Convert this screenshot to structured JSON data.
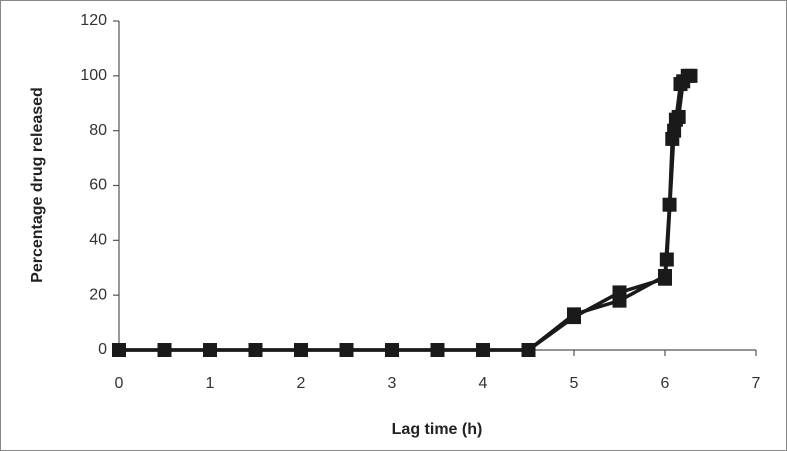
{
  "chart_data": {
    "type": "line",
    "x_label": "Lag time (h)",
    "y_label": "Percentage drug released",
    "series": [
      {
        "color": "#1a1a1a",
        "x": [
          0,
          0.5,
          1,
          1.5,
          2,
          2.5,
          3,
          3.5,
          4,
          4.5,
          5,
          5.5,
          6,
          6.05,
          6.08,
          6.12,
          6.17,
          6.25
        ],
        "values": [
          0,
          0,
          0,
          0,
          0,
          0,
          0,
          0,
          0,
          0,
          13,
          18,
          27,
          53,
          77,
          84,
          97,
          100
        ]
      },
      {
        "color": "#1a1a1a",
        "x": [
          0,
          0.5,
          1,
          1.5,
          2,
          2.5,
          3,
          3.5,
          4,
          4.5,
          5,
          5.5,
          6,
          6.02,
          6.1,
          6.15,
          6.2,
          6.28
        ],
        "values": [
          0,
          0,
          0,
          0,
          0,
          0,
          0,
          0,
          0,
          0,
          12,
          21,
          26,
          33,
          80,
          85,
          98,
          100
        ]
      }
    ],
    "xlim": [
      0,
      7
    ],
    "xticks": [
      0,
      1,
      2,
      3,
      4,
      5,
      6,
      7
    ],
    "ylim": [
      0,
      120
    ],
    "yticks": [
      0,
      20,
      40,
      60,
      80,
      100,
      120
    ],
    "grid": false,
    "marker": "square"
  }
}
